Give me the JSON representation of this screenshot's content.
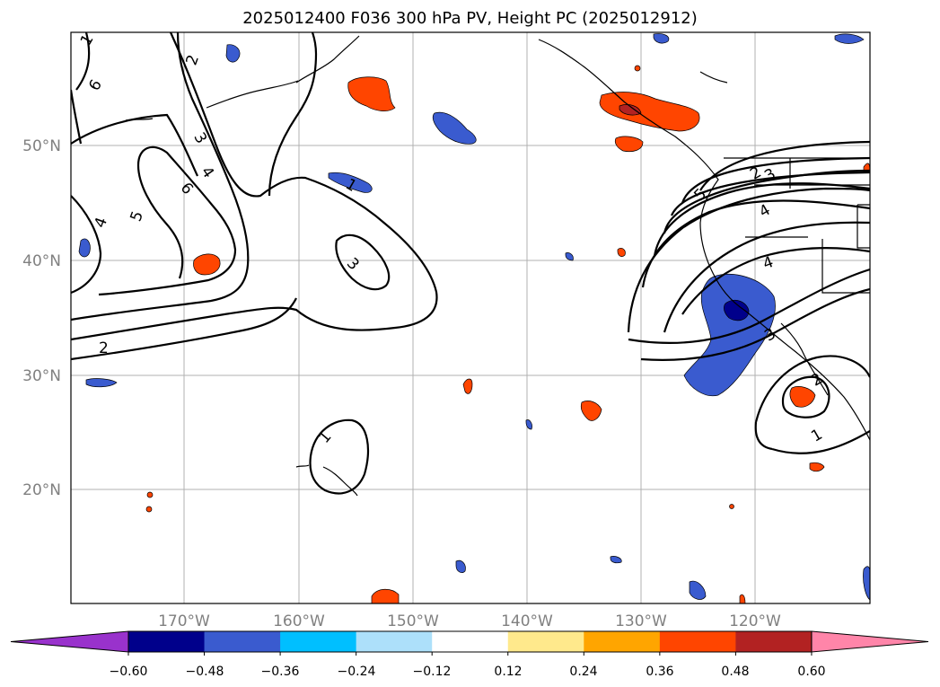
{
  "title": "2025012400 F036 300 hPa PV, Height PC (2025012912)",
  "lat_labels": [
    "50°N",
    "40°N",
    "30°N",
    "20°N"
  ],
  "lon_labels": [
    "170°W",
    "160°W",
    "150°W",
    "140°W",
    "130°W",
    "120°W"
  ],
  "contour_labels": [
    "1",
    "2",
    "3",
    "4",
    "5",
    "6",
    "2",
    "3",
    "4",
    "6",
    "5",
    "4",
    "1",
    "3",
    "2",
    "1",
    "2",
    "3",
    "4",
    "5",
    "4",
    "3",
    "2",
    "1",
    "1"
  ],
  "colorbar": {
    "ticks": [
      "−0.60",
      "−0.48",
      "−0.36",
      "−0.24",
      "−0.12",
      "0.12",
      "0.24",
      "0.36",
      "0.48",
      "0.60"
    ],
    "colors": [
      "#9932CC",
      "#00008B",
      "#3A5BCF",
      "#00BFFF",
      "#ADE0FA",
      "#FFFFFF",
      "#FFE98C",
      "#FFA500",
      "#FF4500",
      "#B22222",
      "#FF85A9"
    ]
  }
}
